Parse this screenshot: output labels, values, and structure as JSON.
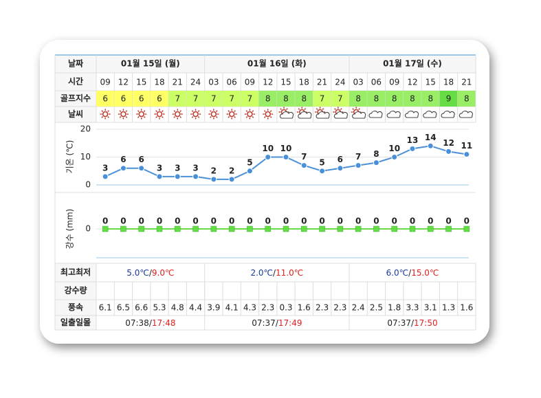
{
  "row_labels": {
    "date": "날짜",
    "time": "시간",
    "golf": "골프지수",
    "weather": "날씨",
    "minmax": "최고최저",
    "rain": "강수량",
    "wind": "풍속",
    "sun": "일출일몰"
  },
  "separator": "/",
  "days": [
    {
      "label": "01월 15일 (월)",
      "times": [
        "09",
        "12",
        "15",
        "18",
        "21",
        "24"
      ],
      "golf_index": [
        6,
        6,
        6,
        6,
        7,
        7
      ],
      "wind": [
        6.1,
        6.5,
        6.6,
        5.3,
        4.8,
        4.4
      ],
      "max": "5.0℃",
      "min": "9.0℃",
      "sunrise": "07:38",
      "sunset": "17:48"
    },
    {
      "label": "01월 16일 (화)",
      "times": [
        "03",
        "06",
        "09",
        "12",
        "15",
        "18",
        "21",
        "24"
      ],
      "golf_index": [
        7,
        7,
        7,
        8,
        8,
        8,
        7,
        7
      ],
      "wind": [
        3.9,
        4.1,
        4.3,
        2.3,
        0.3,
        1.6,
        2.3,
        2.3
      ],
      "max": "2.0℃",
      "min": "11.0℃",
      "sunrise": "07:37",
      "sunset": "17:49"
    },
    {
      "label": "01월 17일 (수)",
      "times": [
        "03",
        "06",
        "09",
        "12",
        "15",
        "18",
        "21"
      ],
      "golf_index": [
        8,
        8,
        8,
        8,
        8,
        9,
        8
      ],
      "wind": [
        2.4,
        2.5,
        1.8,
        3.3,
        3.1,
        1.3,
        1.6
      ],
      "max": "6.0℃",
      "min": "15.0℃",
      "sunrise": "07:37",
      "sunset": "17:50"
    }
  ],
  "chart_data": [
    {
      "type": "line",
      "y_label": "기온 (℃)",
      "values": [
        3,
        6,
        6,
        3,
        3,
        3,
        2,
        2,
        5,
        10,
        10,
        7,
        5,
        6,
        7,
        8,
        10,
        13,
        14,
        12,
        11
      ],
      "ylim": [
        0,
        20
      ],
      "yticks": [
        0,
        10,
        20
      ],
      "color": "#4a90d9"
    },
    {
      "type": "line",
      "y_label": "강수 (mm)",
      "values": [
        0,
        0,
        0,
        0,
        0,
        0,
        0,
        0,
        0,
        0,
        0,
        0,
        0,
        0,
        0,
        0,
        0,
        0,
        0,
        0,
        0
      ],
      "ylim": [
        -1,
        1
      ],
      "yticks": [
        0
      ],
      "color": "#66dd44"
    }
  ]
}
